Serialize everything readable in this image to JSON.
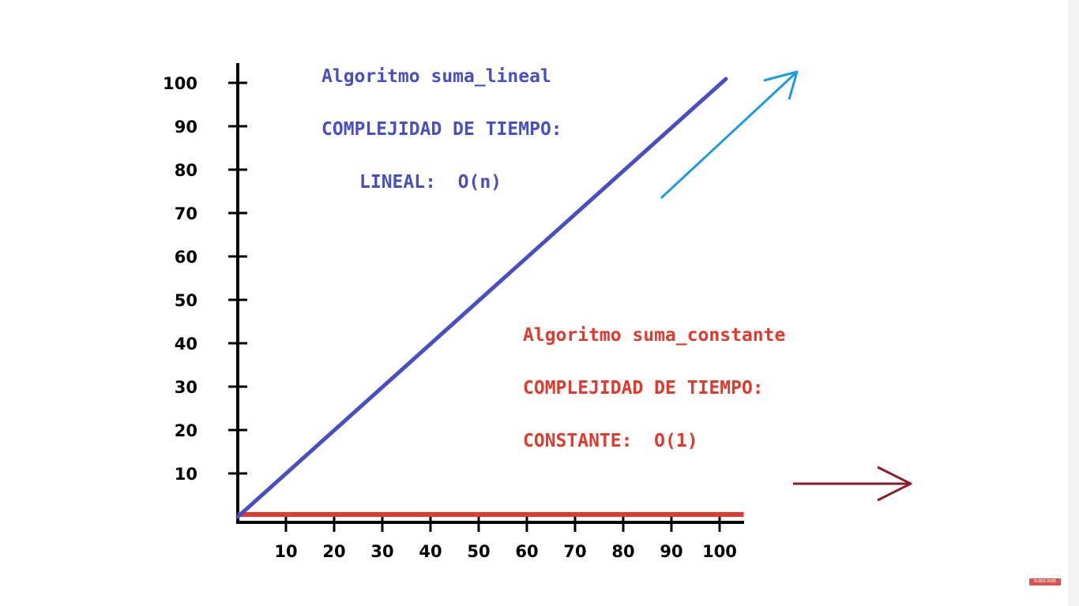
{
  "chart_data": {
    "type": "line",
    "x": [
      0,
      105
    ],
    "series": [
      {
        "name": "Algoritmo suma_lineal",
        "values": [
          0,
          100
        ],
        "color": "#4a4fc0"
      },
      {
        "name": "Algoritmo suma_constante",
        "values": [
          0,
          0
        ],
        "color": "#e03a2e"
      }
    ],
    "xticks": [
      "10",
      "20",
      "30",
      "40",
      "50",
      "60",
      "70",
      "80",
      "90",
      "100"
    ],
    "yticks": [
      "10",
      "20",
      "30",
      "40",
      "50",
      "60",
      "70",
      "80",
      "90",
      "100"
    ],
    "xlim": [
      0,
      105
    ],
    "ylim": [
      0,
      100
    ],
    "grid": false,
    "title": "",
    "xlabel": "",
    "ylabel": ""
  },
  "annotations": {
    "linear": {
      "title": "Algoritmo suma_lineal",
      "heading": "COMPLEJIDAD DE TIEMPO:",
      "complexity": "LINEAL:  O(n)",
      "color": "#4a4fc0",
      "arrow_color": "#1e9be0"
    },
    "constant": {
      "title": "Algoritmo suma_constante",
      "heading": "COMPLEJIDAD DE TIEMPO:",
      "complexity": "CONSTANTE:  O(1)",
      "color": "#e03a2e",
      "arrow_color": "#8b1a2a"
    }
  },
  "subscribe_label": "SUBSCRIBE"
}
